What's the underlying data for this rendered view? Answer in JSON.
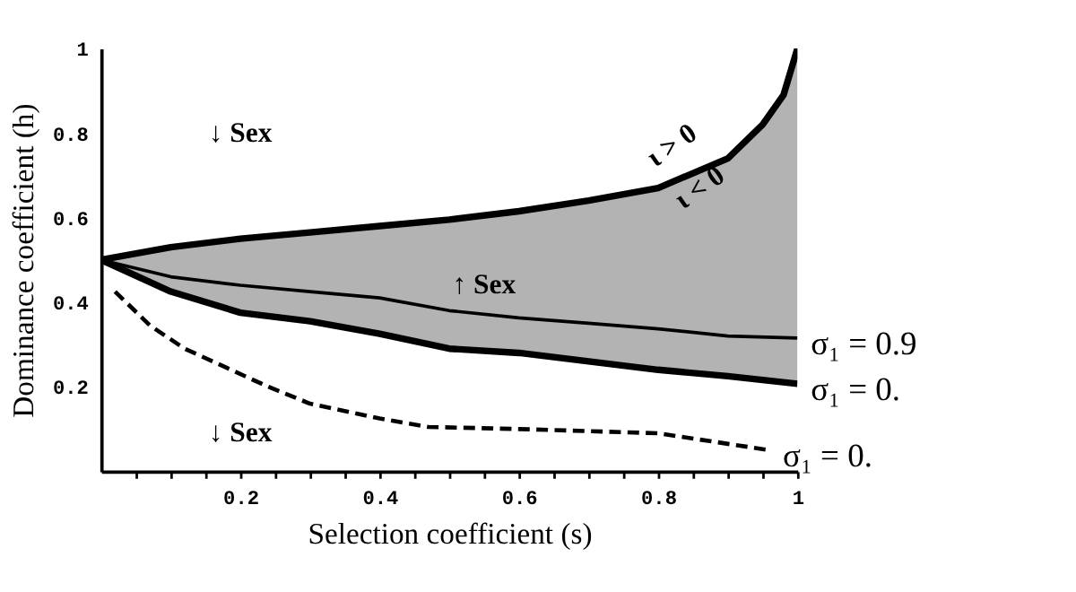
{
  "chart_data": {
    "type": "line",
    "xlabel": "Selection coefficient (s)",
    "ylabel": "Dominance coefficient (h)",
    "xlim": [
      0,
      1
    ],
    "ylim": [
      0,
      1
    ],
    "xticks": [
      {
        "value": 0.05,
        "label": null
      },
      {
        "value": 0.1,
        "label": null
      },
      {
        "value": 0.15,
        "label": null
      },
      0.2,
      {
        "value": 0.25,
        "label": null
      },
      {
        "value": 0.3,
        "label": null
      },
      {
        "value": 0.35,
        "label": null
      },
      0.4,
      {
        "value": 0.45,
        "label": null
      },
      {
        "value": 0.5,
        "label": null
      },
      {
        "value": 0.55,
        "label": null
      },
      0.6,
      {
        "value": 0.65,
        "label": null
      },
      {
        "value": 0.7,
        "label": null
      },
      {
        "value": 0.75,
        "label": null
      },
      0.8,
      {
        "value": 0.85,
        "label": null
      },
      {
        "value": 0.9,
        "label": null
      },
      {
        "value": 0.95,
        "label": null
      },
      1
    ],
    "yticks": [
      0.2,
      0.4,
      0.6,
      0.8,
      1
    ],
    "grid": false,
    "legend": false,
    "series": [
      {
        "color": "#000000",
        "line_style": "solid",
        "x": [
          0,
          0.1,
          0.2,
          0.3,
          0.4,
          0.5,
          0.6,
          0.7,
          0.8,
          0.9,
          0.95,
          0.98,
          1
        ],
        "values": [
          0.5,
          0.53,
          0.55,
          0.565,
          0.58,
          0.595,
          0.615,
          0.64,
          0.67,
          0.74,
          0.82,
          0.89,
          1.0
        ],
        "lower": [
          0.5,
          0.425,
          0.375,
          0.355,
          0.325,
          0.29,
          0.28,
          0.26,
          0.24,
          0.225,
          0.215,
          0.21,
          0.207
        ],
        "upper": [
          0.5,
          0.53,
          0.55,
          0.565,
          0.58,
          0.595,
          0.615,
          0.64,
          0.67,
          0.74,
          0.82,
          0.89,
          1.0
        ]
      },
      {
        "name": "σ₁ = 0.9",
        "color": "#000000",
        "line_style": "solid",
        "x": [
          0,
          0.1,
          0.2,
          0.3,
          0.4,
          0.5,
          0.6,
          0.7,
          0.8,
          0.9,
          1
        ],
        "values": [
          0.5,
          0.46,
          0.44,
          0.425,
          0.41,
          0.38,
          0.363,
          0.35,
          0.337,
          0.32,
          0.315
        ]
      },
      {
        "name": "σ₁ = 0.",
        "color": "#000000",
        "line_style": "solid",
        "x": [
          0,
          0.1,
          0.2,
          0.3,
          0.4,
          0.5,
          0.6,
          0.7,
          0.8,
          0.9,
          1
        ],
        "values": [
          0.5,
          0.425,
          0.375,
          0.355,
          0.325,
          0.29,
          0.28,
          0.26,
          0.24,
          0.225,
          0.207
        ]
      },
      {
        "name": "σ₁ = 0.",
        "color": "#000000",
        "line_style": "dashed",
        "x": [
          0.02,
          0.07,
          0.12,
          0.18,
          0.24,
          0.3,
          0.4,
          0.47,
          0.6,
          0.8,
          0.96
        ],
        "values": [
          0.425,
          0.345,
          0.29,
          0.245,
          0.2,
          0.16,
          0.125,
          0.105,
          0.1,
          0.09,
          0.05
        ]
      }
    ],
    "annotations": [
      "ι > 0",
      "ι < 0",
      "↓ Sex",
      "↑ Sex",
      "↓ Sex"
    ]
  }
}
